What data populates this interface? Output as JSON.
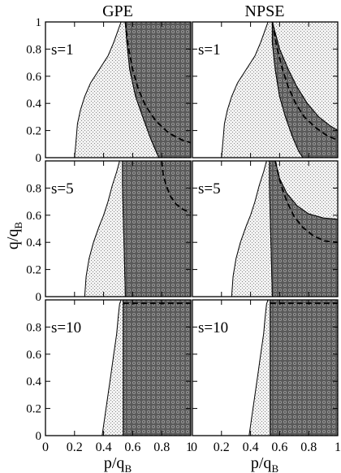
{
  "chart_data": {
    "type": "area",
    "layout": {
      "rows": 3,
      "cols": 2
    },
    "column_titles": [
      "GPE",
      "NPSE"
    ],
    "xlabel": {
      "base": "p/q",
      "sub": "B"
    },
    "ylabel": {
      "base": "q/q",
      "sub": "B"
    },
    "xlim": [
      0,
      1
    ],
    "ylim": [
      0,
      1
    ],
    "x_ticks": [
      0,
      0.2,
      0.4,
      0.6,
      0.8,
      1
    ],
    "x_tick_labels": [
      "0",
      "0.2",
      "0.4",
      "0.6",
      "0.8",
      "1"
    ],
    "y_ticks": [
      0,
      0.2,
      0.4,
      0.6,
      0.8,
      1
    ],
    "y_tick_labels": [
      "0",
      "0.2",
      "0.4",
      "0.6",
      "0.8",
      "1"
    ],
    "grid": false,
    "panels": [
      {
        "label": "s=1",
        "col": 0,
        "row": 0,
        "light_region": [
          [
            0.2,
            0
          ],
          [
            0.21,
            0.12
          ],
          [
            0.22,
            0.25
          ],
          [
            0.24,
            0.35
          ],
          [
            0.27,
            0.45
          ],
          [
            0.31,
            0.55
          ],
          [
            0.37,
            0.65
          ],
          [
            0.43,
            0.75
          ],
          [
            0.47,
            0.85
          ],
          [
            0.52,
            1.0
          ],
          [
            0.55,
            1.0
          ],
          [
            0.56,
            0.85
          ],
          [
            0.58,
            0.65
          ],
          [
            0.62,
            0.45
          ],
          [
            0.67,
            0.3
          ],
          [
            0.72,
            0.15
          ],
          [
            0.76,
            0.05
          ],
          [
            0.78,
            0
          ]
        ],
        "dark_region": [
          [
            0.55,
            1.0
          ],
          [
            1.0,
            1.0
          ],
          [
            1.0,
            0
          ],
          [
            0.78,
            0
          ],
          [
            0.76,
            0.05
          ],
          [
            0.72,
            0.15
          ],
          [
            0.67,
            0.3
          ],
          [
            0.62,
            0.45
          ],
          [
            0.58,
            0.65
          ],
          [
            0.56,
            0.85
          ]
        ],
        "dashed": [
          [
            0.55,
            1.0
          ],
          [
            0.57,
            0.82
          ],
          [
            0.6,
            0.65
          ],
          [
            0.64,
            0.5
          ],
          [
            0.69,
            0.38
          ],
          [
            0.76,
            0.27
          ],
          [
            0.85,
            0.18
          ],
          [
            0.94,
            0.13
          ],
          [
            1.0,
            0.11
          ]
        ]
      },
      {
        "label": "s=1",
        "col": 1,
        "row": 0,
        "light_region": [
          [
            0.2,
            0
          ],
          [
            0.21,
            0.12
          ],
          [
            0.22,
            0.25
          ],
          [
            0.24,
            0.35
          ],
          [
            0.27,
            0.45
          ],
          [
            0.31,
            0.55
          ],
          [
            0.37,
            0.65
          ],
          [
            0.43,
            0.75
          ],
          [
            0.47,
            0.85
          ],
          [
            0.52,
            1.0
          ],
          [
            1.0,
            1.0
          ],
          [
            1.0,
            0.2
          ],
          [
            0.94,
            0.24
          ],
          [
            0.87,
            0.3
          ],
          [
            0.79,
            0.4
          ],
          [
            0.72,
            0.52
          ],
          [
            0.66,
            0.65
          ],
          [
            0.6,
            0.8
          ],
          [
            0.57,
            0.92
          ],
          [
            0.55,
            1.0
          ],
          [
            0.55,
            0.85
          ],
          [
            0.57,
            0.65
          ],
          [
            0.6,
            0.45
          ],
          [
            0.64,
            0.3
          ],
          [
            0.69,
            0.15
          ],
          [
            0.73,
            0.05
          ],
          [
            0.76,
            0
          ]
        ],
        "dark_region": [
          [
            0.55,
            1.0
          ],
          [
            0.57,
            0.92
          ],
          [
            0.6,
            0.8
          ],
          [
            0.66,
            0.65
          ],
          [
            0.72,
            0.52
          ],
          [
            0.79,
            0.4
          ],
          [
            0.87,
            0.3
          ],
          [
            0.94,
            0.24
          ],
          [
            1.0,
            0.2
          ],
          [
            1.0,
            0
          ],
          [
            0.76,
            0
          ],
          [
            0.73,
            0.05
          ],
          [
            0.69,
            0.15
          ],
          [
            0.64,
            0.3
          ],
          [
            0.6,
            0.45
          ],
          [
            0.57,
            0.65
          ],
          [
            0.55,
            0.85
          ]
        ],
        "dashed": [
          [
            0.55,
            1.0
          ],
          [
            0.58,
            0.82
          ],
          [
            0.62,
            0.65
          ],
          [
            0.66,
            0.52
          ],
          [
            0.71,
            0.4
          ],
          [
            0.77,
            0.3
          ],
          [
            0.85,
            0.22
          ],
          [
            0.93,
            0.16
          ],
          [
            1.0,
            0.13
          ]
        ]
      },
      {
        "label": "s=5",
        "col": 0,
        "row": 1,
        "light_region": [
          [
            0.27,
            0
          ],
          [
            0.28,
            0.15
          ],
          [
            0.3,
            0.28
          ],
          [
            0.33,
            0.4
          ],
          [
            0.37,
            0.52
          ],
          [
            0.4,
            0.6
          ],
          [
            0.43,
            0.7
          ],
          [
            0.46,
            0.82
          ],
          [
            0.49,
            0.92
          ],
          [
            0.51,
            1.0
          ],
          [
            0.53,
            1.0
          ],
          [
            0.53,
            0.82
          ],
          [
            0.535,
            0.6
          ],
          [
            0.54,
            0.4
          ],
          [
            0.545,
            0.2
          ],
          [
            0.55,
            0
          ]
        ],
        "dark_region": [
          [
            0.53,
            1.0
          ],
          [
            1.0,
            1.0
          ],
          [
            1.0,
            0
          ],
          [
            0.55,
            0
          ],
          [
            0.545,
            0.2
          ],
          [
            0.54,
            0.4
          ],
          [
            0.535,
            0.6
          ],
          [
            0.53,
            0.82
          ]
        ],
        "dashed": [
          [
            0.8,
            1.0
          ],
          [
            0.81,
            0.9
          ],
          [
            0.83,
            0.82
          ],
          [
            0.86,
            0.74
          ],
          [
            0.9,
            0.68
          ],
          [
            0.95,
            0.64
          ],
          [
            1.0,
            0.62
          ]
        ]
      },
      {
        "label": "s=5",
        "col": 1,
        "row": 1,
        "light_region": [
          [
            0.27,
            0
          ],
          [
            0.28,
            0.15
          ],
          [
            0.3,
            0.28
          ],
          [
            0.33,
            0.4
          ],
          [
            0.37,
            0.52
          ],
          [
            0.4,
            0.6
          ],
          [
            0.43,
            0.7
          ],
          [
            0.46,
            0.82
          ],
          [
            0.49,
            0.92
          ],
          [
            0.51,
            1.0
          ],
          [
            0.53,
            1.0
          ],
          [
            0.53,
            0.82
          ],
          [
            0.535,
            0.6
          ],
          [
            0.54,
            0.4
          ],
          [
            0.545,
            0.2
          ],
          [
            0.55,
            0
          ]
        ],
        "dark_region": [
          [
            0.53,
            1.0
          ],
          [
            0.57,
            1.0
          ],
          [
            0.6,
            0.87
          ],
          [
            0.65,
            0.76
          ],
          [
            0.72,
            0.67
          ],
          [
            0.8,
            0.61
          ],
          [
            0.9,
            0.58
          ],
          [
            1.0,
            0.57
          ],
          [
            1.0,
            0
          ],
          [
            0.55,
            0
          ],
          [
            0.545,
            0.2
          ],
          [
            0.54,
            0.4
          ],
          [
            0.535,
            0.6
          ],
          [
            0.53,
            0.82
          ]
        ],
        "light_top_right": [
          [
            0.57,
            1.0
          ],
          [
            1.0,
            1.0
          ],
          [
            1.0,
            0.57
          ],
          [
            0.9,
            0.58
          ],
          [
            0.8,
            0.61
          ],
          [
            0.72,
            0.67
          ],
          [
            0.65,
            0.76
          ],
          [
            0.6,
            0.87
          ]
        ],
        "dashed": [
          [
            0.57,
            1.0
          ],
          [
            0.61,
            0.82
          ],
          [
            0.65,
            0.7
          ],
          [
            0.7,
            0.59
          ],
          [
            0.76,
            0.51
          ],
          [
            0.83,
            0.45
          ],
          [
            0.91,
            0.41
          ],
          [
            1.0,
            0.4
          ]
        ]
      },
      {
        "label": "s=10",
        "col": 0,
        "row": 2,
        "light_region": [
          [
            0.39,
            0
          ],
          [
            0.41,
            0.15
          ],
          [
            0.43,
            0.3
          ],
          [
            0.45,
            0.45
          ],
          [
            0.47,
            0.6
          ],
          [
            0.49,
            0.75
          ],
          [
            0.5,
            0.87
          ],
          [
            0.51,
            0.97
          ],
          [
            0.52,
            1.0
          ],
          [
            0.535,
            1.0
          ],
          [
            0.535,
            0
          ]
        ],
        "dark_region": [
          [
            0.535,
            1.0
          ],
          [
            1.0,
            1.0
          ],
          [
            1.0,
            0
          ],
          [
            0.535,
            0
          ]
        ],
        "dashed": [
          [
            0.535,
            0.975
          ],
          [
            1.0,
            0.975
          ]
        ]
      },
      {
        "label": "s=10",
        "col": 1,
        "row": 2,
        "light_region": [
          [
            0.39,
            0
          ],
          [
            0.41,
            0.15
          ],
          [
            0.43,
            0.3
          ],
          [
            0.45,
            0.45
          ],
          [
            0.47,
            0.6
          ],
          [
            0.49,
            0.75
          ],
          [
            0.5,
            0.87
          ],
          [
            0.51,
            0.97
          ],
          [
            0.52,
            1.0
          ],
          [
            0.535,
            1.0
          ],
          [
            0.535,
            0
          ]
        ],
        "dark_region": [
          [
            0.535,
            1.0
          ],
          [
            1.0,
            1.0
          ],
          [
            1.0,
            0
          ],
          [
            0.535,
            0
          ]
        ],
        "dashed": [
          [
            0.535,
            0.975
          ],
          [
            1.0,
            0.975
          ]
        ]
      }
    ]
  }
}
